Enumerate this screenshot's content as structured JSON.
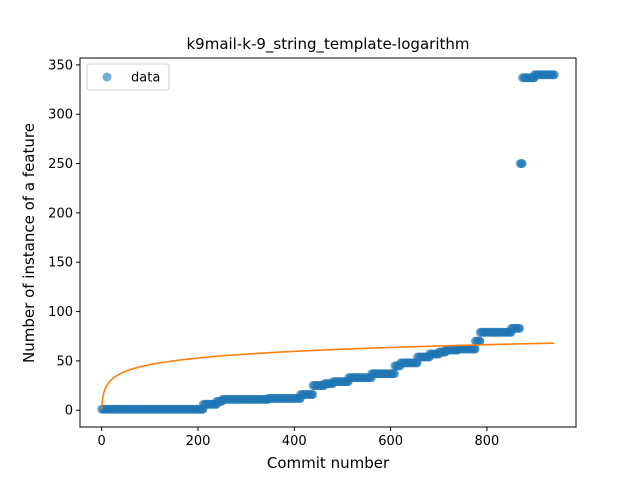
{
  "chart_data": {
    "type": "scatter",
    "title": "k9mail-k-9_string_template-logarithm",
    "xlabel": "Commit number",
    "ylabel": "Number of instance of a feature",
    "xlim": [
      -45,
      985
    ],
    "ylim": [
      -17,
      357
    ],
    "xticks": [
      0,
      200,
      400,
      600,
      800
    ],
    "yticks": [
      0,
      50,
      100,
      150,
      200,
      250,
      300,
      350
    ],
    "xtick_labels": [
      "0",
      "200",
      "400",
      "600",
      "800"
    ],
    "ytick_labels": [
      "0",
      "50",
      "100",
      "150",
      "200",
      "250",
      "300",
      "350"
    ],
    "grid": false,
    "legend": {
      "position": "upper-left",
      "entries": [
        "data"
      ]
    },
    "series": [
      {
        "name": "data",
        "kind": "scatter",
        "color": "#1f77b4",
        "alpha": 0.6,
        "segments": [
          {
            "x_start": 0,
            "x_end": 210,
            "y": 1
          },
          {
            "x_start": 211,
            "x_end": 238,
            "y": 6
          },
          {
            "x_start": 239,
            "x_end": 250,
            "y": 9
          },
          {
            "x_start": 251,
            "x_end": 345,
            "y": 11
          },
          {
            "x_start": 346,
            "x_end": 412,
            "y": 12
          },
          {
            "x_start": 413,
            "x_end": 438,
            "y": 16
          },
          {
            "x_start": 439,
            "x_end": 462,
            "y": 25
          },
          {
            "x_start": 463,
            "x_end": 480,
            "y": 27
          },
          {
            "x_start": 481,
            "x_end": 512,
            "y": 29
          },
          {
            "x_start": 513,
            "x_end": 560,
            "y": 33
          },
          {
            "x_start": 561,
            "x_end": 608,
            "y": 37
          },
          {
            "x_start": 609,
            "x_end": 620,
            "y": 45
          },
          {
            "x_start": 621,
            "x_end": 655,
            "y": 48
          },
          {
            "x_start": 656,
            "x_end": 680,
            "y": 54
          },
          {
            "x_start": 681,
            "x_end": 700,
            "y": 57
          },
          {
            "x_start": 701,
            "x_end": 713,
            "y": 59
          },
          {
            "x_start": 714,
            "x_end": 738,
            "y": 61
          },
          {
            "x_start": 739,
            "x_end": 775,
            "y": 62
          },
          {
            "x_start": 776,
            "x_end": 785,
            "y": 70
          },
          {
            "x_start": 786,
            "x_end": 850,
            "y": 79
          },
          {
            "x_start": 851,
            "x_end": 868,
            "y": 83
          },
          {
            "x_start": 869,
            "x_end": 873,
            "y": 250
          },
          {
            "x_start": 874,
            "x_end": 898,
            "y": 337
          },
          {
            "x_start": 899,
            "x_end": 940,
            "y": 340
          }
        ]
      },
      {
        "name": "",
        "kind": "line",
        "color": "#ff7f0e",
        "model": "logarithmic",
        "y_values_at": [
          {
            "x": 0,
            "y": 1
          },
          {
            "x": 10,
            "y": 27
          },
          {
            "x": 100,
            "y": 47
          },
          {
            "x": 400,
            "y": 60
          },
          {
            "x": 940,
            "y": 68
          }
        ]
      }
    ]
  }
}
